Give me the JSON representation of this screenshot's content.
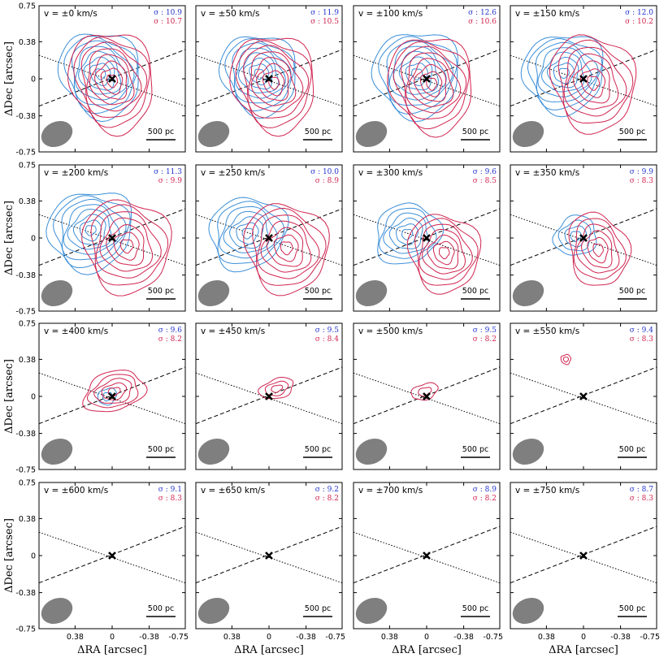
{
  "chart_data": {
    "type": "contour",
    "title": "",
    "xlabel": "ΔRA [arcsec]",
    "ylabel": "ΔDec [arcsec]",
    "x_ticks": [
      "0.38",
      "0",
      "-0.38",
      "-0.75"
    ],
    "y_ticks": [
      "0.75",
      "0.38",
      "0",
      "-0.38",
      "-0.75"
    ],
    "xlim": [
      0.75,
      -0.75
    ],
    "ylim": [
      -0.75,
      0.75
    ],
    "scale_bar_label": "500 pc",
    "sigma_prefix": "σ : ",
    "blue_color": "#3b8fd9",
    "red_color": "#d0244f",
    "beam_color": "#7f7f7f",
    "panels": [
      {
        "label": "v = ±0 km/s",
        "sigma_blue": "10.9",
        "sigma_red": "10.7",
        "blue_contours": 8,
        "red_contours": 8,
        "blue_center": [
          0.12,
          0.05
        ],
        "red_center": [
          0.0,
          -0.02
        ],
        "blue_size": [
          0.4,
          0.45
        ],
        "red_size": [
          0.42,
          0.52
        ]
      },
      {
        "label": "v = ±50 km/s",
        "sigma_blue": "11.9",
        "sigma_red": "10.5",
        "blue_contours": 8,
        "red_contours": 8,
        "blue_center": [
          0.1,
          0.05
        ],
        "red_center": [
          -0.05,
          -0.04
        ],
        "blue_size": [
          0.38,
          0.42
        ],
        "red_size": [
          0.42,
          0.5
        ]
      },
      {
        "label": "v = ±100 km/s",
        "sigma_blue": "12.6",
        "sigma_red": "10.6",
        "blue_contours": 8,
        "red_contours": 8,
        "blue_center": [
          0.1,
          0.05
        ],
        "red_center": [
          -0.05,
          -0.05
        ],
        "blue_size": [
          0.44,
          0.44
        ],
        "red_size": [
          0.42,
          0.5
        ]
      },
      {
        "label": "v = ±150 km/s",
        "sigma_blue": "12.0",
        "sigma_red": "10.2",
        "blue_contours": 8,
        "red_contours": 7,
        "blue_center": [
          0.2,
          0.06
        ],
        "red_center": [
          -0.1,
          -0.04
        ],
        "blue_size": [
          0.42,
          0.4
        ],
        "red_size": [
          0.42,
          0.5
        ]
      },
      {
        "label": "v = ±200 km/s",
        "sigma_blue": "11.3",
        "sigma_red": "9.9",
        "blue_contours": 8,
        "red_contours": 7,
        "blue_center": [
          0.22,
          0.08
        ],
        "red_center": [
          -0.15,
          -0.08
        ],
        "blue_size": [
          0.44,
          0.4
        ],
        "red_size": [
          0.44,
          0.48
        ]
      },
      {
        "label": "v = ±250 km/s",
        "sigma_blue": "10.0",
        "sigma_red": "8.9",
        "blue_contours": 7,
        "red_contours": 7,
        "blue_center": [
          0.22,
          0.05
        ],
        "red_center": [
          -0.18,
          -0.1
        ],
        "blue_size": [
          0.4,
          0.36
        ],
        "red_size": [
          0.42,
          0.46
        ]
      },
      {
        "label": "v = ±300 km/s",
        "sigma_blue": "9.6",
        "sigma_red": "8.5",
        "blue_contours": 6,
        "red_contours": 7,
        "blue_center": [
          0.2,
          0.04
        ],
        "red_center": [
          -0.18,
          -0.15
        ],
        "blue_size": [
          0.34,
          0.3
        ],
        "red_size": [
          0.36,
          0.4
        ]
      },
      {
        "label": "v = ±350 km/s",
        "sigma_blue": "9.9",
        "sigma_red": "8.3",
        "blue_contours": 4,
        "red_contours": 6,
        "blue_center": [
          0.08,
          0.02
        ],
        "red_center": [
          -0.15,
          -0.12
        ],
        "blue_size": [
          0.22,
          0.2
        ],
        "red_size": [
          0.3,
          0.38
        ]
      },
      {
        "label": "v = ±400 km/s",
        "sigma_blue": "9.6",
        "sigma_red": "8.2",
        "blue_contours": 2,
        "red_contours": 5,
        "blue_center": [
          0.05,
          0.0
        ],
        "red_center": [
          -0.02,
          0.05
        ],
        "blue_size": [
          0.1,
          0.08
        ],
        "red_size": [
          0.32,
          0.2
        ]
      },
      {
        "label": "v = ±450 km/s",
        "sigma_blue": "9.5",
        "sigma_red": "8.4",
        "blue_contours": 0,
        "red_contours": 3,
        "blue_center": [
          0.0,
          0.0
        ],
        "red_center": [
          -0.08,
          0.08
        ],
        "blue_size": [
          0.0,
          0.0
        ],
        "red_size": [
          0.18,
          0.1
        ]
      },
      {
        "label": "v = ±500 km/s",
        "sigma_blue": "9.5",
        "sigma_red": "8.2",
        "blue_contours": 0,
        "red_contours": 2,
        "blue_center": [
          0.0,
          0.0
        ],
        "red_center": [
          0.02,
          0.05
        ],
        "blue_size": [
          0.0,
          0.0
        ],
        "red_size": [
          0.14,
          0.08
        ]
      },
      {
        "label": "v = ±550 km/s",
        "sigma_blue": "9.4",
        "sigma_red": "8.3",
        "blue_contours": 0,
        "red_contours": 2,
        "blue_center": [
          0.0,
          0.0
        ],
        "red_center": [
          0.18,
          0.38
        ],
        "blue_size": [
          0.0,
          0.0
        ],
        "red_size": [
          0.05,
          0.05
        ]
      },
      {
        "label": "v = ±600 km/s",
        "sigma_blue": "9.1",
        "sigma_red": "8.3",
        "blue_contours": 0,
        "red_contours": 0,
        "blue_center": [
          0,
          0
        ],
        "red_center": [
          0,
          0
        ],
        "blue_size": [
          0,
          0
        ],
        "red_size": [
          0,
          0
        ]
      },
      {
        "label": "v = ±650 km/s",
        "sigma_blue": "9.2",
        "sigma_red": "8.2",
        "blue_contours": 0,
        "red_contours": 0,
        "blue_center": [
          0,
          0
        ],
        "red_center": [
          0,
          0
        ],
        "blue_size": [
          0,
          0
        ],
        "red_size": [
          0,
          0
        ]
      },
      {
        "label": "v = ±700 km/s",
        "sigma_blue": "8.9",
        "sigma_red": "8.2",
        "blue_contours": 0,
        "red_contours": 0,
        "blue_center": [
          0,
          0
        ],
        "red_center": [
          0,
          0
        ],
        "blue_size": [
          0,
          0
        ],
        "red_size": [
          0,
          0
        ]
      },
      {
        "label": "v = ±750 km/s",
        "sigma_blue": "8.7",
        "sigma_red": "8.3",
        "blue_contours": 0,
        "red_contours": 0,
        "blue_center": [
          0,
          0
        ],
        "red_center": [
          0,
          0
        ],
        "blue_size": [
          0,
          0
        ],
        "red_size": [
          0,
          0
        ]
      }
    ]
  }
}
